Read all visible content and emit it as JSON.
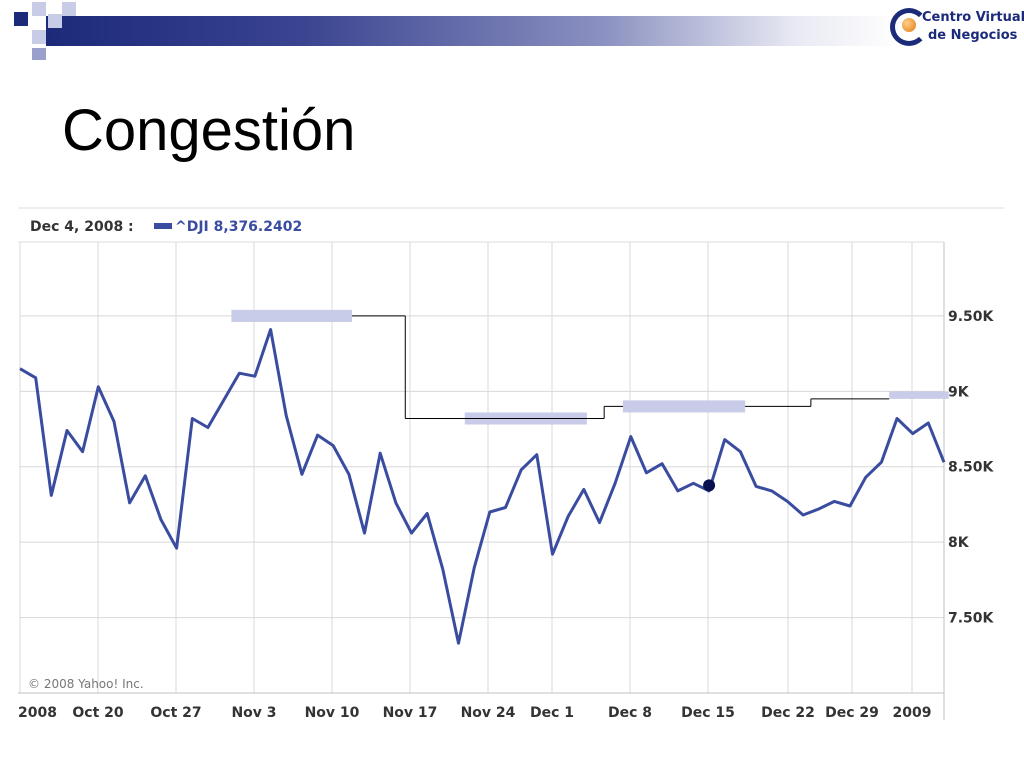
{
  "slide": {
    "title": "Congestión",
    "logo_line1": "Centro Virtual",
    "logo_line2": "de Negocios"
  },
  "chart_data": {
    "type": "line",
    "header_date": "Dec 4, 2008 :",
    "series": [
      {
        "name": "^DJI",
        "header_label": "^DJI 8,376.2402",
        "color": "#3a4ca0",
        "values": [
          9150,
          9090,
          8310,
          8740,
          8600,
          9030,
          8800,
          8260,
          8440,
          8150,
          7960,
          8820,
          8760,
          8940,
          9120,
          9100,
          9410,
          8840,
          8450,
          8710,
          8640,
          8450,
          8060,
          8590,
          8260,
          8060,
          8190,
          7820,
          7330,
          7830,
          8200,
          8230,
          8480,
          8580,
          7920,
          8170,
          8350,
          8130,
          8390,
          8700,
          8460,
          8520,
          8340,
          8390,
          8340,
          8680,
          8600,
          8370,
          8340,
          8270,
          8180,
          8220,
          8270,
          8240,
          8430,
          8530,
          8820,
          8720,
          8790,
          8530
        ]
      }
    ],
    "highlight": {
      "x_index": 44,
      "value": 8376.24,
      "color": "#0a0f50"
    },
    "x_tick_labels": [
      "2008",
      "Oct 20",
      "Oct 27",
      "Nov 3",
      "Nov 10",
      "Nov 17",
      "Nov 24",
      "Dec 1",
      "Dec 8",
      "Dec 15",
      "Dec 22",
      "Dec 29",
      "2009"
    ],
    "y_ticks": [
      {
        "value": 9500,
        "label": "9.50K"
      },
      {
        "value": 9000,
        "label": "9K"
      },
      {
        "value": 8500,
        "label": "8.50K"
      },
      {
        "value": 8000,
        "label": "8K"
      },
      {
        "value": 7500,
        "label": "7.50K"
      }
    ],
    "ylim": [
      7000,
      9990
    ],
    "grid": true,
    "copyright": "© 2008 Yahoo! Inc.",
    "congestion_zones": [
      {
        "start_index": 13.5,
        "end_index": 21.2,
        "low": 9460,
        "high": 9540
      },
      {
        "start_index": 28.4,
        "end_index": 36.2,
        "low": 8780,
        "high": 8860
      },
      {
        "start_index": 38.5,
        "end_index": 46.3,
        "low": 8860,
        "high": 8940
      },
      {
        "start_index": 55.5,
        "end_index": 59.3,
        "low": 8950,
        "high": 9000
      }
    ],
    "resistance_line": [
      {
        "start_index": 21.2,
        "end_index": 24.6,
        "value": 9500
      },
      {
        "start_index": 24.6,
        "end_index": 36.2,
        "value": 8820
      },
      {
        "start_index": 36.2,
        "end_index": 37.3,
        "value": 8820
      },
      {
        "start_index": 37.3,
        "end_index": 38.5,
        "value": 8900
      },
      {
        "start_index": 46.3,
        "end_index": 50.5,
        "value": 8900
      },
      {
        "start_index": 50.5,
        "end_index": 55.5,
        "value": 8950
      }
    ],
    "colors": {
      "zone": "#c9cce8",
      "line": "#3a4ca0",
      "grid": "#d8d8d8",
      "step": "#000000"
    }
  }
}
